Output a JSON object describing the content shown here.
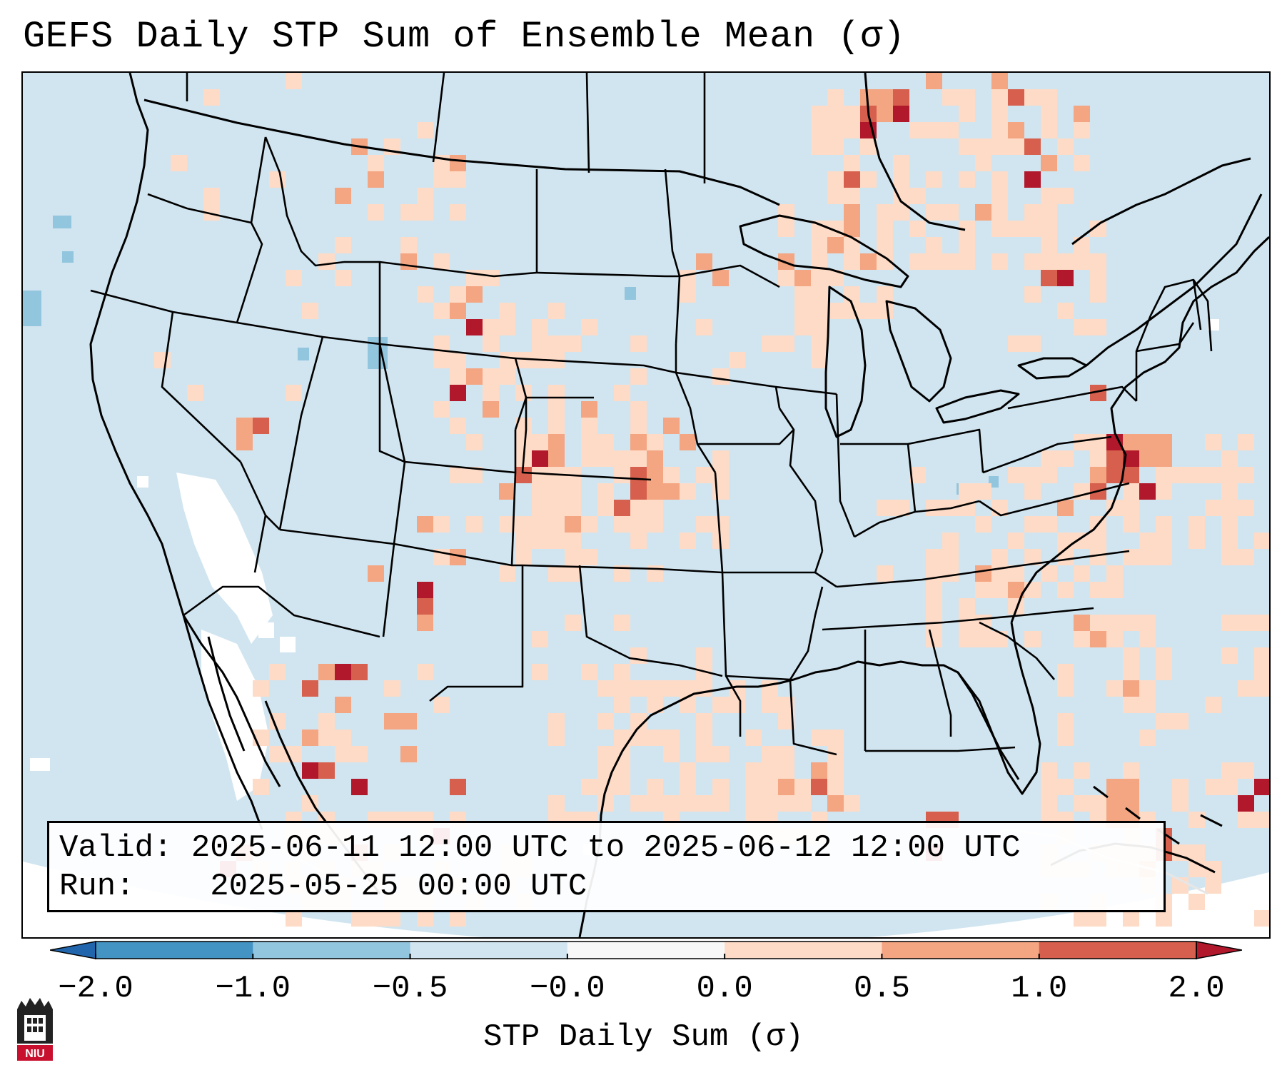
{
  "title": "GEFS Daily STP Sum of Ensemble Mean (σ)",
  "info": {
    "valid_label": "Valid:",
    "valid_value": "2025-06-11 12:00 UTC to 2025-06-12 12:00 UTC",
    "run_label": "Run:",
    "run_value": "2025-05-25 00:00 UTC"
  },
  "colorbar": {
    "title": "STP Daily Sum (σ)",
    "bounds": [
      -2.0,
      -1.0,
      -0.5,
      -0.0,
      0.0,
      0.5,
      1.0,
      2.0
    ],
    "tick_labels": [
      "−2.0",
      "−1.0",
      "−0.5",
      "−0.0",
      "0.0",
      "0.5",
      "1.0",
      "2.0"
    ],
    "colors": [
      "#2166ac",
      "#4393c3",
      "#92c5de",
      "#d1e5f0",
      "#f7f7f7",
      "#fddbc7",
      "#f4a582",
      "#d6604d",
      "#b2182b"
    ],
    "extend": "both"
  },
  "map": {
    "domain": "CONUS",
    "background_color": "#d1e5f0",
    "outside_color": "#ffffff",
    "line_color": "#000000"
  },
  "logo": {
    "text": "NIU",
    "color": "#c8102e"
  }
}
